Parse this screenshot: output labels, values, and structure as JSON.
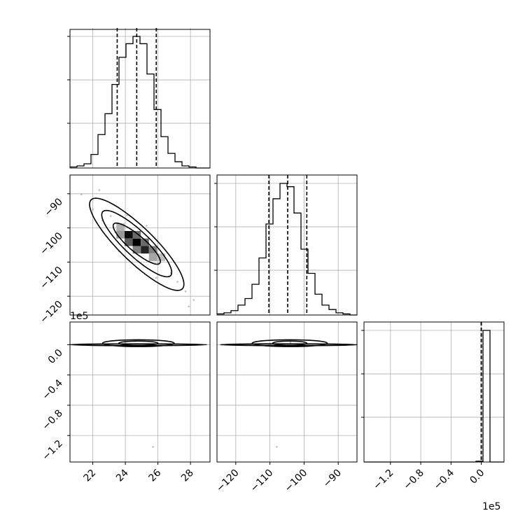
{
  "chart_data": {
    "type": "corner",
    "parameters": [
      {
        "range": [
          20.6,
          29.2
        ],
        "ticks": [
          22,
          24,
          26,
          28
        ],
        "tick_labels": [
          "22",
          "24",
          "26",
          "28"
        ],
        "quantiles": [
          23.5,
          24.7,
          25.9
        ],
        "histogram": {
          "edges": [
            20.6,
            21.03,
            21.46,
            21.89,
            22.32,
            22.75,
            23.18,
            23.61,
            24.04,
            24.47,
            24.9,
            25.33,
            25.76,
            26.19,
            26.62,
            27.05,
            27.48,
            27.91,
            28.34,
            28.77,
            29.2
          ],
          "counts": [
            1,
            2,
            4,
            13,
            32,
            52,
            80,
            106,
            119,
            126,
            119,
            90,
            56,
            30,
            14,
            6,
            2,
            1,
            0,
            0
          ]
        }
      },
      {
        "range": [
          -125.5,
          -84.5
        ],
        "ticks": [
          -90,
          -100,
          -110,
          -120
        ],
        "tick_labels": [
          "−90",
          "−100",
          "−110",
          "−120"
        ],
        "quantiles": [
          -110.3,
          -104.8,
          -99.2
        ],
        "histogram": {
          "edges": [
            -125.5,
            -123.45,
            -121.4,
            -119.35,
            -117.3,
            -115.25,
            -113.2,
            -111.15,
            -109.1,
            -107.05,
            -105.0,
            -102.95,
            -100.9,
            -98.85,
            -96.8,
            -94.75,
            -92.7,
            -90.65,
            -88.6,
            -86.55,
            -84.5
          ],
          "counts": [
            1,
            2,
            4,
            9,
            15,
            28,
            52,
            83,
            106,
            120,
            117,
            93,
            60,
            38,
            19,
            9,
            5,
            2,
            1,
            0
          ]
        }
      },
      {
        "range": [
          -1.55,
          0.3
        ],
        "ticks": [
          0.0,
          -0.4,
          -0.8,
          -1.2
        ],
        "tick_labels": [
          "0.0",
          "−0.4",
          "−0.8",
          "−1.2"
        ],
        "offset_label": "1e5",
        "quantiles": [
          0.0,
          0.0,
          0.0
        ],
        "histogram": {
          "edges": [
            -1.55,
            -1.4575,
            -1.365,
            -1.2725,
            -1.18,
            -1.0875,
            -0.995,
            -0.9025,
            -0.81,
            -0.7175,
            -0.625,
            -0.5325,
            -0.44,
            -0.3475,
            -0.255,
            -0.1625,
            -0.07,
            0.0225,
            0.115,
            0.2075,
            0.3
          ],
          "counts": [
            0,
            0,
            0,
            0,
            0,
            0,
            0,
            0,
            0,
            0,
            0,
            0,
            0,
            0,
            0,
            0,
            1,
            180,
            0,
            0
          ]
        }
      }
    ],
    "pairs": [
      {
        "row": 1,
        "col": 0,
        "sample_points": [
          [
            21.3,
            -90.2
          ],
          [
            22.0,
            -94.6
          ],
          [
            22.6,
            -97.8
          ],
          [
            23.1,
            -96.5
          ],
          [
            23.4,
            -101.2
          ],
          [
            23.9,
            -99.8
          ],
          [
            24.3,
            -103.4
          ],
          [
            24.8,
            -106.0
          ],
          [
            25.1,
            -104.2
          ],
          [
            25.5,
            -108.8
          ],
          [
            26.0,
            -110.5
          ],
          [
            26.3,
            -107.9
          ],
          [
            26.8,
            -113.2
          ],
          [
            27.2,
            -115.8
          ],
          [
            27.7,
            -118.6
          ],
          [
            28.2,
            -121.1
          ],
          [
            22.4,
            -88.9
          ],
          [
            27.9,
            -123.0
          ],
          [
            24.1,
            -96.3
          ],
          [
            25.9,
            -114.6
          ],
          [
            23.6,
            -106.9
          ],
          [
            25.3,
            -99.4
          ]
        ],
        "density_cells": [
          {
            "x": 24.2,
            "y": -102.0,
            "level": 0.95
          },
          {
            "x": 24.7,
            "y": -104.2,
            "level": 1.0
          },
          {
            "x": 25.2,
            "y": -106.4,
            "level": 0.85
          },
          {
            "x": 24.2,
            "y": -104.2,
            "level": 0.6
          },
          {
            "x": 24.7,
            "y": -102.0,
            "level": 0.55
          },
          {
            "x": 25.2,
            "y": -104.2,
            "level": 0.55
          },
          {
            "x": 25.7,
            "y": -106.4,
            "level": 0.45
          },
          {
            "x": 24.7,
            "y": -106.4,
            "level": 0.45
          },
          {
            "x": 23.7,
            "y": -102.0,
            "level": 0.35
          },
          {
            "x": 25.7,
            "y": -108.6,
            "level": 0.3
          },
          {
            "x": 23.7,
            "y": -99.8,
            "level": 0.25
          },
          {
            "x": 26.2,
            "y": -108.6,
            "level": 0.2
          }
        ],
        "contours": [
          {
            "cx": 24.7,
            "cy": -104.6,
            "rx": 1.45,
            "ry": 6.7,
            "angle_deg": -0.62
          },
          {
            "cx": 24.7,
            "cy": -104.6,
            "rx": 2.15,
            "ry": 10.8,
            "angle_deg": -0.62
          },
          {
            "cx": 24.7,
            "cy": -104.8,
            "rx": 2.9,
            "ry": 15.0,
            "angle_deg": -0.62
          }
        ]
      },
      {
        "row": 2,
        "col": 0,
        "sample_points": [
          [
            23.2,
            0.0
          ],
          [
            24.0,
            0.03
          ],
          [
            25.1,
            -0.02
          ],
          [
            26.3,
            0.0
          ],
          [
            24.6,
            0.05
          ],
          [
            21.5,
            0.0
          ],
          [
            28.4,
            0.0
          ],
          [
            25.7,
            -1.35
          ]
        ],
        "contours": [
          {
            "cx": 24.8,
            "cy": 0.02,
            "rx": 1.2,
            "ry": 0.028
          },
          {
            "cx": 24.8,
            "cy": 0.02,
            "rx": 2.2,
            "ry": 0.045
          },
          {
            "cx": 24.8,
            "cy": 0.0,
            "rx": 4.2,
            "ry": 0.012
          }
        ]
      },
      {
        "row": 2,
        "col": 1,
        "sample_points": [
          [
            -110.0,
            0.0
          ],
          [
            -104.0,
            0.03
          ],
          [
            -99.0,
            -0.02
          ],
          [
            -95.0,
            0.0
          ],
          [
            -106.5,
            0.05
          ],
          [
            -124.0,
            0.0
          ],
          [
            -86.0,
            0.0
          ],
          [
            -108.0,
            -1.35
          ]
        ],
        "contours": [
          {
            "cx": -104.2,
            "cy": 0.02,
            "rx": 5.0,
            "ry": 0.028
          },
          {
            "cx": -104.2,
            "cy": 0.02,
            "rx": 11.0,
            "ry": 0.045
          },
          {
            "cx": -104.5,
            "cy": 0.0,
            "rx": 20.0,
            "ry": 0.012
          }
        ]
      }
    ],
    "grid": true
  }
}
